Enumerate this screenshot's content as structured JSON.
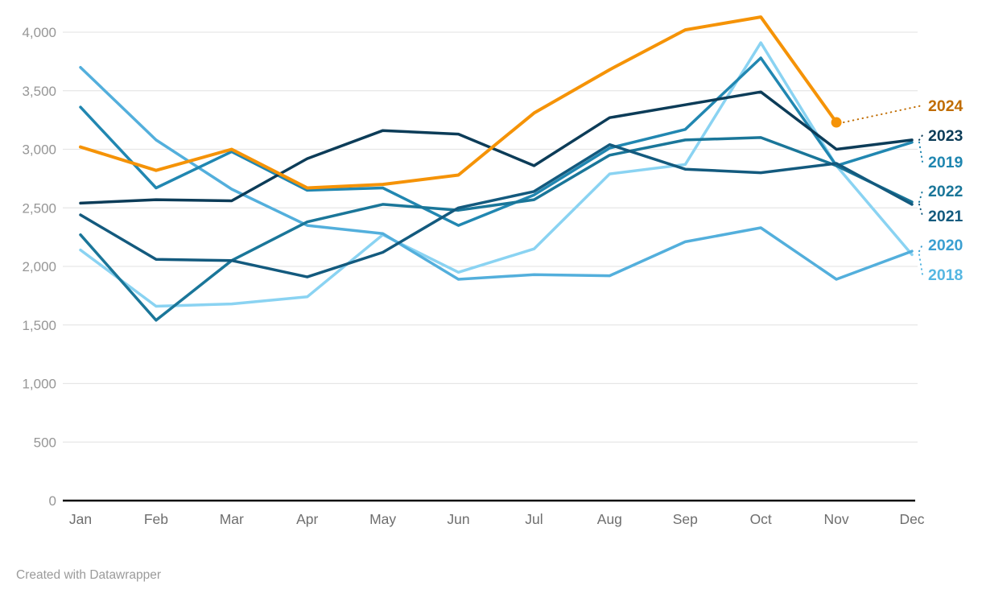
{
  "footer": {
    "credit": "Created with Datawrapper"
  },
  "chart_data": {
    "type": "line",
    "x": [
      "Jan",
      "Feb",
      "Mar",
      "Apr",
      "May",
      "Jun",
      "Jul",
      "Aug",
      "Sep",
      "Oct",
      "Nov",
      "Dec"
    ],
    "y_axis": {
      "range": [
        0,
        4000
      ],
      "tick_values": [
        0,
        500,
        1000,
        1500,
        2000,
        2500,
        3000,
        3500,
        4000
      ],
      "tick_labels": [
        "0",
        "500",
        "1,000",
        "1,500",
        "2,000",
        "2,500",
        "3,000",
        "3,500",
        "4,000"
      ],
      "grid": true
    },
    "legend_position": "right-end-labels",
    "highlight": {
      "series": "2024",
      "endpoint_dot": true,
      "last_month": "Nov"
    },
    "series": [
      {
        "name": "2018",
        "color": "#8ad3f2",
        "label_color": "#56b7e2",
        "values": [
          2140,
          1660,
          1680,
          1740,
          2270,
          1950,
          2150,
          2790,
          2870,
          3910,
          2860,
          2100
        ]
      },
      {
        "name": "2020",
        "color": "#53afdc",
        "label_color": "#3b9fd1",
        "values": [
          3700,
          3080,
          2660,
          2350,
          2280,
          1890,
          1930,
          1920,
          2210,
          2330,
          1890,
          2130
        ]
      },
      {
        "name": "2019",
        "color": "#2187b1",
        "label_color": "#1f86b0",
        "values": [
          3360,
          2670,
          2980,
          2650,
          2670,
          2350,
          2610,
          3010,
          3170,
          3780,
          2860,
          3060
        ]
      },
      {
        "name": "2022",
        "color": "#1a7699",
        "label_color": "#1a7699",
        "values": [
          2270,
          1540,
          2050,
          2380,
          2530,
          2480,
          2570,
          2950,
          3080,
          3100,
          2860,
          2550
        ]
      },
      {
        "name": "2021",
        "color": "#135a7e",
        "label_color": "#135a7e",
        "values": [
          2440,
          2060,
          2050,
          1910,
          2120,
          2500,
          2640,
          3040,
          2830,
          2800,
          2880,
          2530
        ]
      },
      {
        "name": "2023",
        "color": "#0c3c58",
        "label_color": "#0c3c58",
        "values": [
          2540,
          2570,
          2560,
          2920,
          3160,
          3130,
          2860,
          3270,
          3380,
          3490,
          3000,
          3080
        ]
      },
      {
        "name": "2024",
        "color": "#f59307",
        "label_color": "#c06c00",
        "values": [
          3020,
          2820,
          3000,
          2670,
          2700,
          2780,
          3310,
          3680,
          4020,
          4130,
          3230,
          null
        ]
      }
    ]
  }
}
